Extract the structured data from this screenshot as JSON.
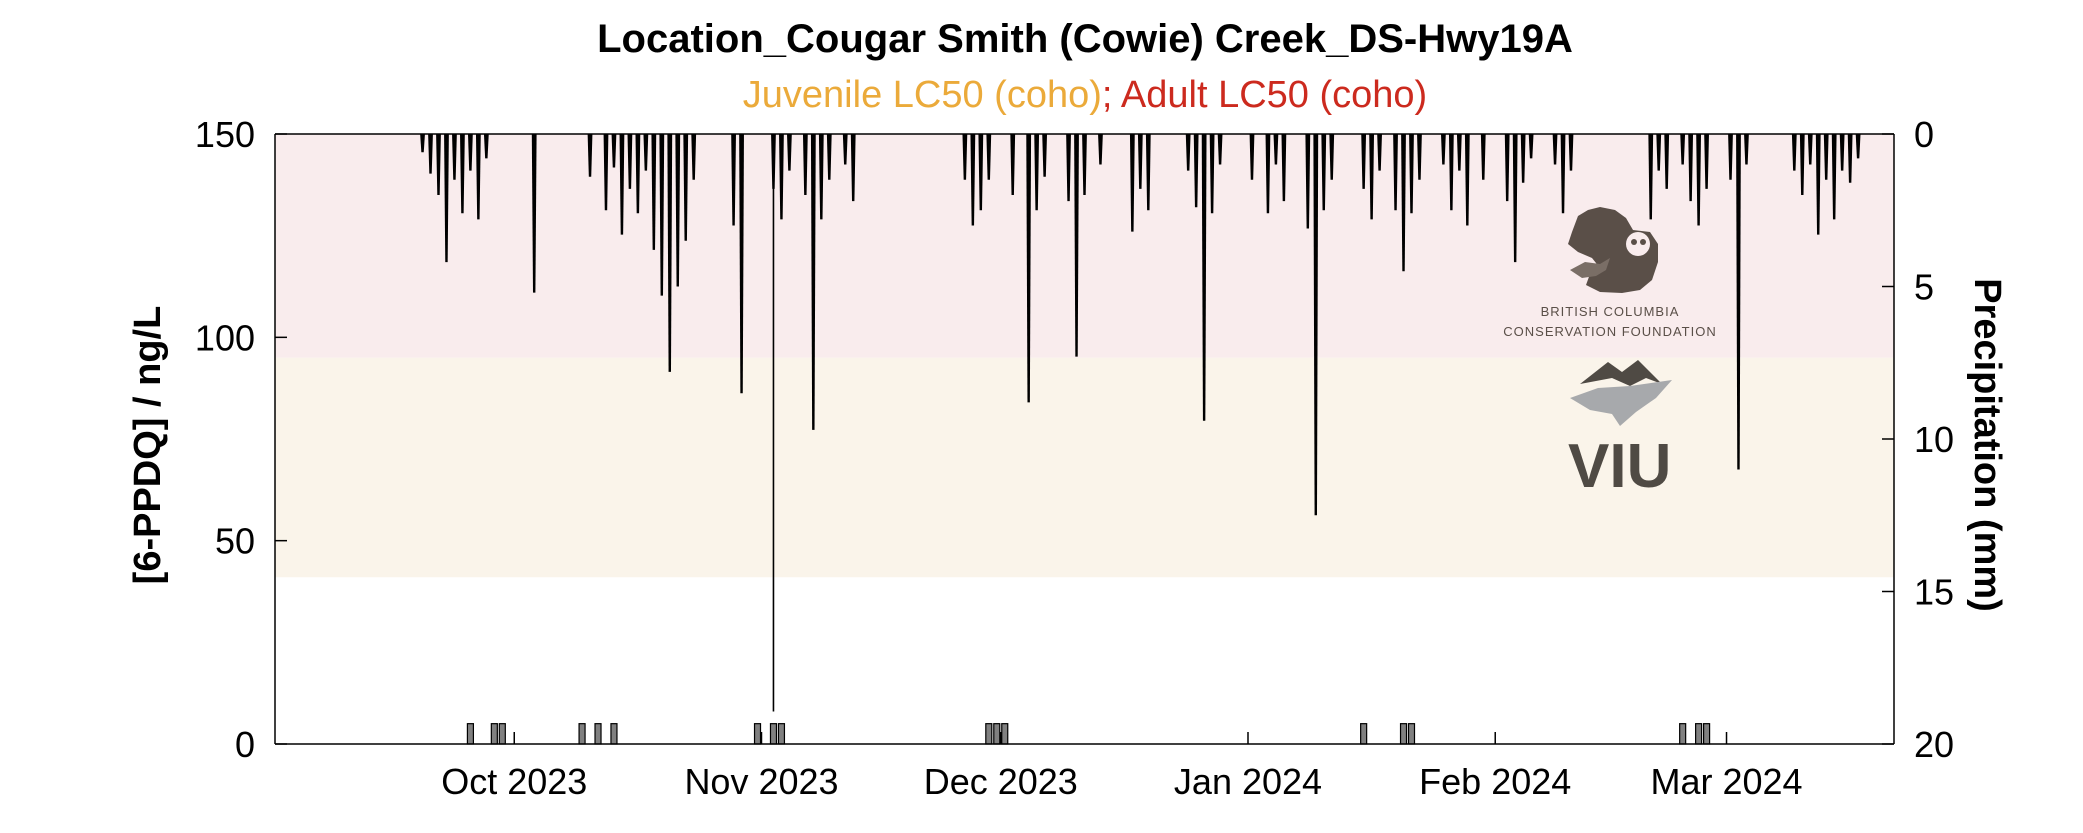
{
  "chart_data": {
    "type": "line",
    "title": "Location_Cougar Smith (Cowie) Creek_DS-Hwy19A",
    "subtitle_parts": [
      "Juvenile LC50 (coho)",
      "; ",
      "Adult LC50 (coho)"
    ],
    "ylabel": "[6-PPDQ] / ng/L",
    "ylabel_right": "Precipitation (mm)",
    "xlim": [
      "2023-09-01",
      "2024-03-22"
    ],
    "ylim": [
      0,
      150
    ],
    "ylim_right": [
      20,
      0
    ],
    "yticks": [
      0,
      50,
      100,
      150
    ],
    "yticks_right": [
      0,
      5,
      10,
      15,
      20
    ],
    "xticks": [
      {
        "date": "2023-10-01",
        "label": "Oct 2023"
      },
      {
        "date": "2023-11-01",
        "label": "Nov 2023"
      },
      {
        "date": "2023-12-01",
        "label": "Dec 2023"
      },
      {
        "date": "2024-01-01",
        "label": "Jan 2024"
      },
      {
        "date": "2024-02-01",
        "label": "Feb 2024"
      },
      {
        "date": "2024-03-01",
        "label": "Mar 2024"
      }
    ],
    "bands": [
      {
        "name": "Juvenile LC50 (coho)",
        "from": 41,
        "to": 95,
        "color": "#faf4ea"
      },
      {
        "name": "Adult LC50 (coho)",
        "from": 95,
        "to": 150,
        "color": "#f9eced"
      }
    ],
    "series": [
      {
        "type": "bar",
        "axis": "left",
        "color": "#808080",
        "points": [
          {
            "x": "2023-09-25",
            "y": 5
          },
          {
            "x": "2023-09-28",
            "y": 5
          },
          {
            "x": "2023-09-29",
            "y": 5
          },
          {
            "x": "2023-10-09",
            "y": 5
          },
          {
            "x": "2023-10-11",
            "y": 5
          },
          {
            "x": "2023-10-13",
            "y": 5
          },
          {
            "x": "2023-10-31",
            "y": 5
          },
          {
            "x": "2023-11-02",
            "y": 5
          },
          {
            "x": "2023-11-03",
            "y": 5
          },
          {
            "x": "2023-11-29",
            "y": 5
          },
          {
            "x": "2023-11-30",
            "y": 5
          },
          {
            "x": "2023-12-01",
            "y": 5
          },
          {
            "x": "2024-01-15",
            "y": 5
          },
          {
            "x": "2024-01-20",
            "y": 5
          },
          {
            "x": "2024-01-21",
            "y": 5
          },
          {
            "x": "2024-02-24",
            "y": 5
          },
          {
            "x": "2024-02-26",
            "y": 5
          },
          {
            "x": "2024-02-27",
            "y": 5
          }
        ]
      },
      {
        "type": "precip",
        "axis": "right",
        "color": "#000000",
        "points": [
          {
            "x": "2023-09-19",
            "y": 0.6
          },
          {
            "x": "2023-09-20",
            "y": 1.3
          },
          {
            "x": "2023-09-21",
            "y": 2.0
          },
          {
            "x": "2023-09-22",
            "y": 4.2
          },
          {
            "x": "2023-09-23",
            "y": 1.5
          },
          {
            "x": "2023-09-24",
            "y": 2.6
          },
          {
            "x": "2023-09-25",
            "y": 1.2
          },
          {
            "x": "2023-09-26",
            "y": 2.8
          },
          {
            "x": "2023-09-27",
            "y": 0.8
          },
          {
            "x": "2023-10-03",
            "y": 5.2
          },
          {
            "x": "2023-10-10",
            "y": 1.4
          },
          {
            "x": "2023-10-12",
            "y": 2.5
          },
          {
            "x": "2023-10-13",
            "y": 1.1
          },
          {
            "x": "2023-10-14",
            "y": 3.3
          },
          {
            "x": "2023-10-15",
            "y": 1.8
          },
          {
            "x": "2023-10-16",
            "y": 2.6
          },
          {
            "x": "2023-10-17",
            "y": 1.2
          },
          {
            "x": "2023-10-18",
            "y": 3.8
          },
          {
            "x": "2023-10-19",
            "y": 5.3
          },
          {
            "x": "2023-10-20",
            "y": 7.8
          },
          {
            "x": "2023-10-21",
            "y": 5.0
          },
          {
            "x": "2023-10-22",
            "y": 3.5
          },
          {
            "x": "2023-10-23",
            "y": 1.5
          },
          {
            "x": "2023-10-28",
            "y": 3.0
          },
          {
            "x": "2023-10-29",
            "y": 8.5
          },
          {
            "x": "2023-11-02",
            "y": 1.8
          },
          {
            "x": "2023-11-03",
            "y": 2.8
          },
          {
            "x": "2023-11-04",
            "y": 1.2
          },
          {
            "x": "2023-11-06",
            "y": 2.0
          },
          {
            "x": "2023-11-07",
            "y": 9.7
          },
          {
            "x": "2023-11-08",
            "y": 2.8
          },
          {
            "x": "2023-11-09",
            "y": 1.5
          },
          {
            "x": "2023-11-11",
            "y": 1.0
          },
          {
            "x": "2023-11-12",
            "y": 2.2
          },
          {
            "x": "2023-11-26",
            "y": 1.5
          },
          {
            "x": "2023-11-27",
            "y": 3.0
          },
          {
            "x": "2023-11-28",
            "y": 2.5
          },
          {
            "x": "2023-11-29",
            "y": 1.5
          },
          {
            "x": "2023-12-02",
            "y": 2.0
          },
          {
            "x": "2023-12-04",
            "y": 8.8
          },
          {
            "x": "2023-12-05",
            "y": 2.5
          },
          {
            "x": "2023-12-06",
            "y": 1.4
          },
          {
            "x": "2023-12-09",
            "y": 2.2
          },
          {
            "x": "2023-12-10",
            "y": 7.3
          },
          {
            "x": "2023-12-11",
            "y": 2.0
          },
          {
            "x": "2023-12-13",
            "y": 1.0
          },
          {
            "x": "2023-12-17",
            "y": 3.2
          },
          {
            "x": "2023-12-18",
            "y": 1.8
          },
          {
            "x": "2023-12-19",
            "y": 2.5
          },
          {
            "x": "2023-12-24",
            "y": 1.2
          },
          {
            "x": "2023-12-25",
            "y": 2.4
          },
          {
            "x": "2023-12-26",
            "y": 9.4
          },
          {
            "x": "2023-12-27",
            "y": 2.6
          },
          {
            "x": "2023-12-28",
            "y": 1.0
          },
          {
            "x": "2024-01-01",
            "y": 1.5
          },
          {
            "x": "2024-01-03",
            "y": 2.6
          },
          {
            "x": "2024-01-04",
            "y": 1.0
          },
          {
            "x": "2024-01-05",
            "y": 2.2
          },
          {
            "x": "2024-01-08",
            "y": 3.1
          },
          {
            "x": "2024-01-09",
            "y": 12.5
          },
          {
            "x": "2024-01-10",
            "y": 2.5
          },
          {
            "x": "2024-01-11",
            "y": 1.5
          },
          {
            "x": "2024-01-15",
            "y": 1.8
          },
          {
            "x": "2024-01-16",
            "y": 2.8
          },
          {
            "x": "2024-01-17",
            "y": 1.2
          },
          {
            "x": "2024-01-19",
            "y": 2.5
          },
          {
            "x": "2024-01-20",
            "y": 4.5
          },
          {
            "x": "2024-01-21",
            "y": 2.6
          },
          {
            "x": "2024-01-22",
            "y": 1.5
          },
          {
            "x": "2024-01-25",
            "y": 1.0
          },
          {
            "x": "2024-01-26",
            "y": 2.5
          },
          {
            "x": "2024-01-27",
            "y": 1.2
          },
          {
            "x": "2024-01-28",
            "y": 3.0
          },
          {
            "x": "2024-01-30",
            "y": 1.5
          },
          {
            "x": "2024-02-02",
            "y": 2.2
          },
          {
            "x": "2024-02-03",
            "y": 4.2
          },
          {
            "x": "2024-02-04",
            "y": 1.6
          },
          {
            "x": "2024-02-05",
            "y": 0.8
          },
          {
            "x": "2024-02-08",
            "y": 1.0
          },
          {
            "x": "2024-02-09",
            "y": 2.6
          },
          {
            "x": "2024-02-10",
            "y": 1.2
          },
          {
            "x": "2024-02-20",
            "y": 2.8
          },
          {
            "x": "2024-02-21",
            "y": 1.2
          },
          {
            "x": "2024-02-22",
            "y": 1.8
          },
          {
            "x": "2024-02-24",
            "y": 1.0
          },
          {
            "x": "2024-02-25",
            "y": 2.2
          },
          {
            "x": "2024-02-26",
            "y": 3.0
          },
          {
            "x": "2024-02-27",
            "y": 1.8
          },
          {
            "x": "2024-03-01",
            "y": 1.5
          },
          {
            "x": "2024-03-02",
            "y": 11.0
          },
          {
            "x": "2024-03-03",
            "y": 1.0
          },
          {
            "x": "2024-03-09",
            "y": 1.2
          },
          {
            "x": "2024-03-10",
            "y": 2.0
          },
          {
            "x": "2024-03-11",
            "y": 1.0
          },
          {
            "x": "2024-03-12",
            "y": 3.3
          },
          {
            "x": "2024-03-13",
            "y": 1.5
          },
          {
            "x": "2024-03-14",
            "y": 2.8
          },
          {
            "x": "2024-03-15",
            "y": 1.2
          },
          {
            "x": "2024-03-16",
            "y": 1.6
          },
          {
            "x": "2024-03-17",
            "y": 0.8
          }
        ]
      },
      {
        "type": "spike",
        "axis": "left",
        "color": "#000000",
        "points": [
          {
            "x": "2023-11-02",
            "y": 8
          }
        ]
      }
    ],
    "grid": false,
    "logos": [
      "BRITISH COLUMBIA",
      "CONSERVATION FOUNDATION",
      "VIU"
    ]
  },
  "colors": {
    "juvenile": "#ebaa3a",
    "adult": "#cc2a1e",
    "axis": "#000000",
    "bar_fill": "#808080",
    "logo_dark": "#5a4f48",
    "logo_leaf": "#a7a9ac"
  }
}
